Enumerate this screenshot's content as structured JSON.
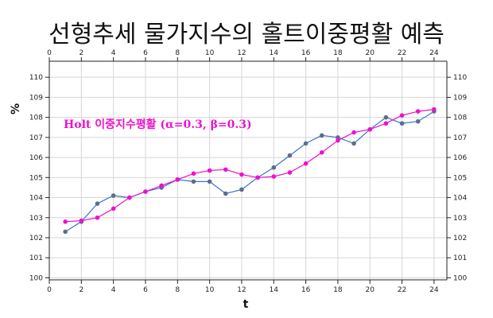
{
  "title": "선형추세 물가지수의 홀트이중평활 예측",
  "chart_data": {
    "type": "line",
    "title": "선형추세 물가지수의 홀트이중평활 예측",
    "xlabel": "t",
    "ylabel": "%",
    "xlim": [
      0,
      24.8
    ],
    "ylim": [
      99.9,
      110.8
    ],
    "x_ticks": [
      0,
      2,
      4,
      6,
      8,
      10,
      12,
      14,
      16,
      18,
      20,
      22,
      24
    ],
    "y_ticks": [
      100,
      101,
      102,
      103,
      104,
      105,
      106,
      107,
      108,
      109,
      110
    ],
    "grid": true,
    "x": [
      1,
      2,
      3,
      4,
      5,
      6,
      7,
      8,
      9,
      10,
      11,
      12,
      13,
      14,
      15,
      16,
      17,
      18,
      19,
      20,
      21,
      22,
      23,
      24
    ],
    "series": [
      {
        "color": "#3a74c8",
        "marker_color": "#5a6e8c",
        "values": [
          102.3,
          102.8,
          103.7,
          104.1,
          104.0,
          104.3,
          104.5,
          104.9,
          104.8,
          104.8,
          104.2,
          104.4,
          105.0,
          105.5,
          106.1,
          106.7,
          107.1,
          107.0,
          106.7,
          107.4,
          108.0,
          107.7,
          107.8,
          108.3
        ]
      },
      {
        "color": "#ee11cc",
        "marker_color": "#ee11cc",
        "values": [
          102.8,
          102.85,
          103.0,
          103.45,
          104.0,
          104.3,
          104.6,
          104.9,
          105.2,
          105.35,
          105.4,
          105.15,
          105.0,
          105.05,
          105.25,
          105.7,
          106.25,
          106.85,
          107.25,
          107.4,
          107.7,
          108.1,
          108.3,
          108.4
        ]
      }
    ],
    "annotation": {
      "text": "Holt 이중지수평활 (α=0.3, β=0.3)",
      "color": "#ee11cc"
    }
  }
}
